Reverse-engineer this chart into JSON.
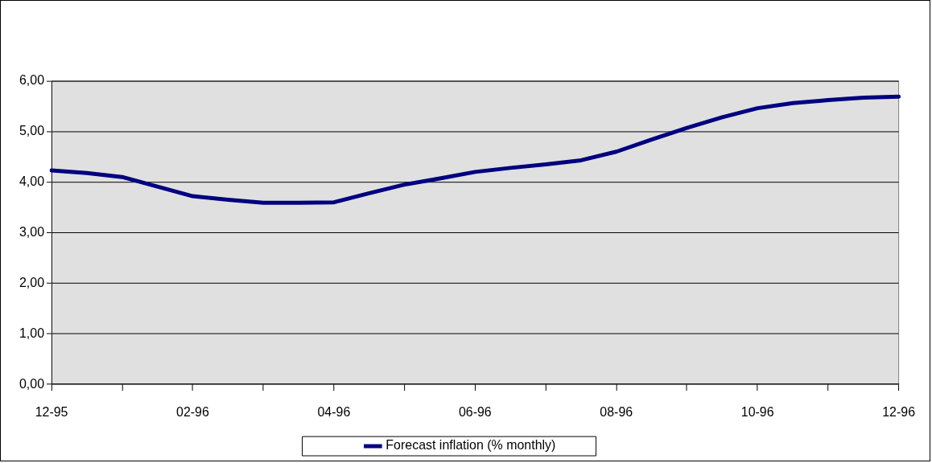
{
  "chart_data": {
    "type": "line",
    "categories": [
      "12-95",
      null,
      null,
      null,
      "02-96",
      null,
      null,
      null,
      "04-96",
      null,
      null,
      null,
      "06-96",
      null,
      null,
      null,
      "08-96",
      null,
      null,
      null,
      "10-96",
      null,
      null,
      null,
      "12-96"
    ],
    "series": [
      {
        "name": "Forecast inflation (% monthly)",
        "color": "#000080",
        "values": [
          4.23,
          4.18,
          4.1,
          3.91,
          3.72,
          3.65,
          3.59,
          3.59,
          3.6,
          3.78,
          3.95,
          4.07,
          4.2,
          4.28,
          4.35,
          4.43,
          4.6,
          4.84,
          5.07,
          5.28,
          5.46,
          5.56,
          5.62,
          5.67,
          5.69
        ]
      }
    ],
    "ylim": [
      0,
      6
    ],
    "yticks": [
      {
        "value": 0,
        "label": "0,00"
      },
      {
        "value": 1,
        "label": "1,00"
      },
      {
        "value": 2,
        "label": "2,00"
      },
      {
        "value": 3,
        "label": "3,00"
      },
      {
        "value": 4,
        "label": "4,00"
      },
      {
        "value": 5,
        "label": "5,00"
      },
      {
        "value": 6,
        "label": "6,00"
      }
    ],
    "grid": "y",
    "legend": "bottom",
    "marker": "none",
    "line_style": "solid"
  }
}
